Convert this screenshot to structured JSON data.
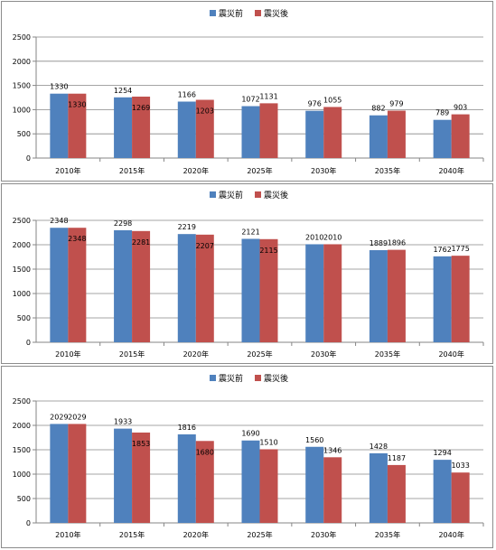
{
  "chart_data": [
    {
      "type": "bar",
      "categories": [
        "2010年",
        "2015年",
        "2020年",
        "2025年",
        "2030年",
        "2035年",
        "2040年"
      ],
      "series": [
        {
          "name": "震災前",
          "values": [
            1330,
            1254,
            1166,
            1072,
            976,
            882,
            789
          ]
        },
        {
          "name": "震災後",
          "values": [
            1330,
            1269,
            1203,
            1131,
            1055,
            979,
            903
          ]
        }
      ],
      "ylim": [
        0,
        2500
      ],
      "yticks": [
        "0",
        "500",
        "1000",
        "1500",
        "2000",
        "2500"
      ],
      "grid": true,
      "legend": "top-center"
    },
    {
      "type": "bar",
      "categories": [
        "2010年",
        "2015年",
        "2020年",
        "2025年",
        "2030年",
        "2035年",
        "2040年"
      ],
      "series": [
        {
          "name": "震災前",
          "values": [
            2348,
            2298,
            2219,
            2121,
            2010,
            1889,
            1762
          ]
        },
        {
          "name": "震災後",
          "values": [
            2348,
            2281,
            2207,
            2115,
            2010,
            1896,
            1775
          ]
        }
      ],
      "ylim": [
        0,
        2500
      ],
      "yticks": [
        "0",
        "500",
        "1000",
        "1500",
        "2000",
        "2500"
      ],
      "grid": true,
      "legend": "top-center"
    },
    {
      "type": "bar",
      "categories": [
        "2010年",
        "2015年",
        "2020年",
        "2025年",
        "2030年",
        "2035年",
        "2040年"
      ],
      "series": [
        {
          "name": "震災前",
          "values": [
            2029,
            1933,
            1816,
            1690,
            1560,
            1428,
            1294
          ]
        },
        {
          "name": "震災後",
          "values": [
            2029,
            1853,
            1680,
            1510,
            1346,
            1187,
            1033
          ]
        }
      ],
      "ylim": [
        0,
        2500
      ],
      "yticks": [
        "0",
        "500",
        "1000",
        "1500",
        "2000",
        "2500"
      ],
      "grid": true,
      "legend": "top-center"
    }
  ],
  "colors": {
    "series_before": "#4f81bd",
    "series_after": "#c0504d",
    "grid": "#878787",
    "axis": "#868686"
  }
}
